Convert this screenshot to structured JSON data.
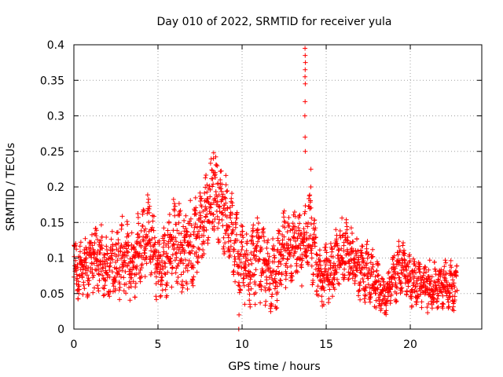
{
  "chart_data": {
    "type": "scatter",
    "title": "Day 010 of 2022, SRMTID for receiver yula",
    "xlabel": "GPS time / hours",
    "ylabel": "SRMTID / TECUs",
    "xlim": [
      0,
      24.25
    ],
    "ylim": [
      0,
      0.4
    ],
    "xticks": [
      0,
      5,
      10,
      15,
      20
    ],
    "xtick_labels": [
      "0",
      "5",
      "10",
      "15",
      "20"
    ],
    "yticks": [
      0,
      0.05,
      0.1,
      0.15,
      0.2,
      0.25,
      0.3,
      0.35,
      0.4
    ],
    "ytick_labels": [
      "0",
      "0.05",
      "0.1",
      "0.15",
      "0.2",
      "0.25",
      "0.3",
      "0.35",
      "0.4"
    ],
    "grid": true,
    "marker": "+",
    "series": [
      {
        "name": "SRMTID",
        "color": "#ff0000",
        "envelope": {
          "x": [
            0,
            0.5,
            1,
            1.5,
            2,
            2.5,
            3,
            3.5,
            4,
            4.5,
            5,
            5.5,
            6,
            6.5,
            7,
            7.5,
            8,
            8.5,
            9,
            9.5,
            10,
            10.5,
            11,
            11.5,
            12,
            12.5,
            13,
            13.5,
            14,
            14.5,
            15,
            15.5,
            16,
            16.5,
            17,
            17.5,
            18,
            18.5,
            19,
            19.5,
            20,
            20.5,
            21,
            21.5,
            22,
            22.5,
            22.8
          ],
          "center": [
            0.085,
            0.08,
            0.095,
            0.1,
            0.085,
            0.095,
            0.1,
            0.09,
            0.12,
            0.14,
            0.08,
            0.1,
            0.13,
            0.11,
            0.12,
            0.14,
            0.18,
            0.19,
            0.16,
            0.12,
            0.09,
            0.09,
            0.1,
            0.08,
            0.075,
            0.11,
            0.12,
            0.11,
            0.14,
            0.08,
            0.075,
            0.09,
            0.11,
            0.1,
            0.08,
            0.08,
            0.06,
            0.045,
            0.07,
            0.09,
            0.07,
            0.065,
            0.06,
            0.06,
            0.065,
            0.06,
            0.065
          ],
          "spread": [
            0.03,
            0.03,
            0.035,
            0.035,
            0.03,
            0.035,
            0.04,
            0.035,
            0.04,
            0.04,
            0.035,
            0.04,
            0.045,
            0.04,
            0.045,
            0.04,
            0.04,
            0.04,
            0.04,
            0.045,
            0.045,
            0.04,
            0.04,
            0.035,
            0.035,
            0.04,
            0.04,
            0.035,
            0.04,
            0.035,
            0.03,
            0.035,
            0.035,
            0.03,
            0.03,
            0.03,
            0.025,
            0.02,
            0.025,
            0.03,
            0.025,
            0.025,
            0.025,
            0.025,
            0.025,
            0.025,
            0.025
          ]
        },
        "spikes": [
          {
            "x": 13.75,
            "y": [
              0.25,
              0.27,
              0.3,
              0.32,
              0.345,
              0.355,
              0.365,
              0.375,
              0.385,
              0.395
            ]
          },
          {
            "x": 9.8,
            "y": [
              0.0,
              0.02
            ]
          },
          {
            "x": 14.1,
            "y": [
              0.2,
              0.225
            ]
          },
          {
            "x": 8.3,
            "y": [
              0.22,
              0.24,
              0.248
            ]
          }
        ]
      }
    ]
  }
}
